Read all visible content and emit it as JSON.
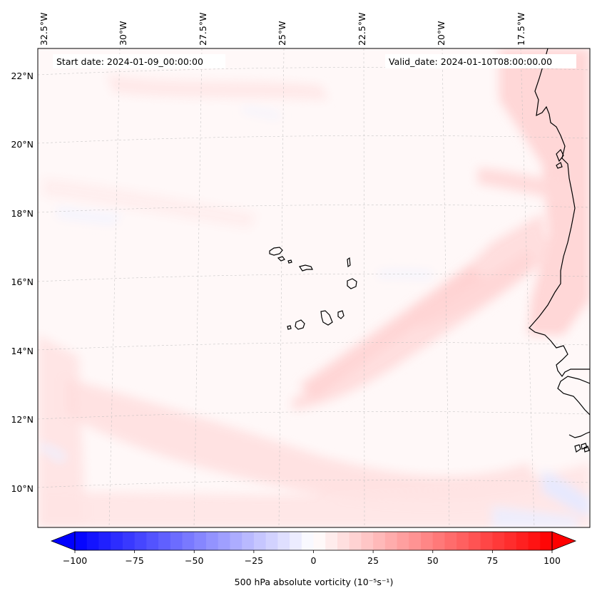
{
  "map": {
    "start_date_label": "Start date: 2024-01-09_00:00:00",
    "valid_date_label": "Valid_date: 2024-01-10T08:00:00.00",
    "lon_labels": [
      "32.5°W",
      "30°W",
      "27.5°W",
      "25°W",
      "22.5°W",
      "20°W",
      "17.5°W"
    ],
    "lat_labels": [
      "22°N",
      "20°N",
      "18°N",
      "16°N",
      "14°N",
      "12°N",
      "10°N"
    ],
    "extent": {
      "lon_min": -32.7,
      "lon_max": -15.3,
      "lat_min": 8.9,
      "lat_max": 22.8
    }
  },
  "colorbar": {
    "label": "500 hPa absolute vorticity (10⁻⁵s⁻¹)",
    "ticks": [
      "−100",
      "−75",
      "−50",
      "−25",
      "0",
      "25",
      "50",
      "75",
      "100"
    ],
    "tick_values": [
      -100,
      -75,
      -50,
      -25,
      0,
      25,
      50,
      75,
      100
    ],
    "range": [
      -100,
      100
    ],
    "colormap": "bwr",
    "extend": "both",
    "low_color": "#0000ff",
    "mid_color": "#ffffff",
    "high_color": "#ff0000"
  }
}
